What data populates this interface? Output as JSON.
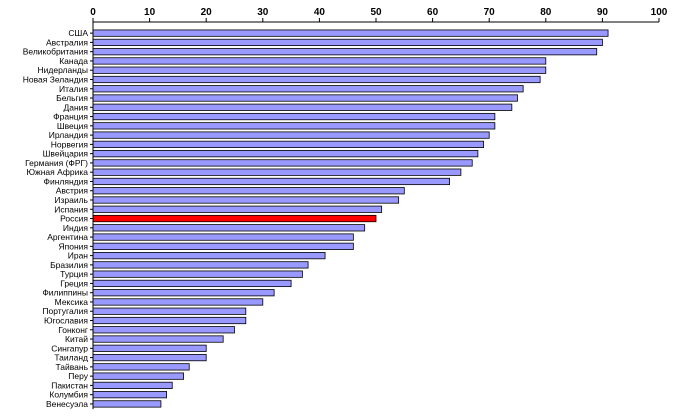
{
  "chart_data": {
    "type": "bar",
    "orientation": "horizontal",
    "title": "",
    "xlabel": "",
    "ylabel": "",
    "xlim": [
      0,
      100
    ],
    "xticks": [
      0,
      10,
      20,
      30,
      40,
      50,
      60,
      70,
      80,
      90,
      100
    ],
    "xaxis_position": "top",
    "grid": false,
    "legend": "none",
    "colors": {
      "default": "#9999FF",
      "highlight": "#FF0000"
    },
    "highlight_category": "Россия",
    "categories": [
      "США",
      "Австралия",
      "Великобритания",
      "Канада",
      "Нидерланды",
      "Новая Зеландия",
      "Италия",
      "Бельгия",
      "Дания",
      "Франция",
      "Швеция",
      "Ирландия",
      "Норвегия",
      "Швейцария",
      "Германия (ФРГ)",
      "Южная Африка",
      "Финляндия",
      "Австрия",
      "Израиль",
      "Испания",
      "Россия",
      "Индия",
      "Аргентина",
      "Япония",
      "Иран",
      "Бразилия",
      "Турция",
      "Греция",
      "Филиппины",
      "Мексика",
      "Португалия",
      "Югославия",
      "Гонконг",
      "Китай",
      "Сингапур",
      "Таиланд",
      "Тайвань",
      "Перу",
      "Пакистан",
      "Колумбия",
      "Венесуэла"
    ],
    "values": [
      91,
      90,
      89,
      80,
      80,
      79,
      76,
      75,
      74,
      71,
      71,
      70,
      69,
      68,
      67,
      65,
      63,
      55,
      54,
      51,
      50,
      48,
      46,
      46,
      41,
      38,
      37,
      35,
      32,
      30,
      27,
      27,
      25,
      23,
      20,
      20,
      17,
      16,
      14,
      13,
      12
    ]
  }
}
